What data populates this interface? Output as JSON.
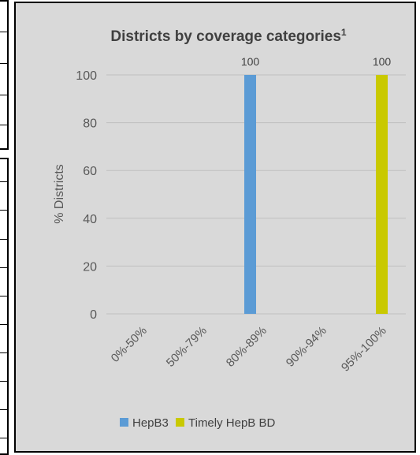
{
  "chart_data": {
    "type": "bar",
    "title": "Districts by coverage categories",
    "title_superscript": "1",
    "xlabel": "",
    "ylabel": "% Districts",
    "ylim": [
      0,
      100
    ],
    "yticks": [
      "0",
      "20",
      "40",
      "60",
      "80",
      "100"
    ],
    "categories": [
      "0%-50%",
      "50%-79%",
      "80%-89%",
      "90%-94%",
      "95%-100%"
    ],
    "series": [
      {
        "name": "HepB3",
        "color": "#5b9bd5",
        "values": [
          0,
          0,
          100,
          0,
          0
        ]
      },
      {
        "name": "Timely HepB BD",
        "color": "#c9c900",
        "values": [
          0,
          0,
          0,
          0,
          100
        ]
      }
    ],
    "data_labels": [
      "100",
      "100"
    ],
    "grid": true,
    "legend_position": "bottom"
  }
}
